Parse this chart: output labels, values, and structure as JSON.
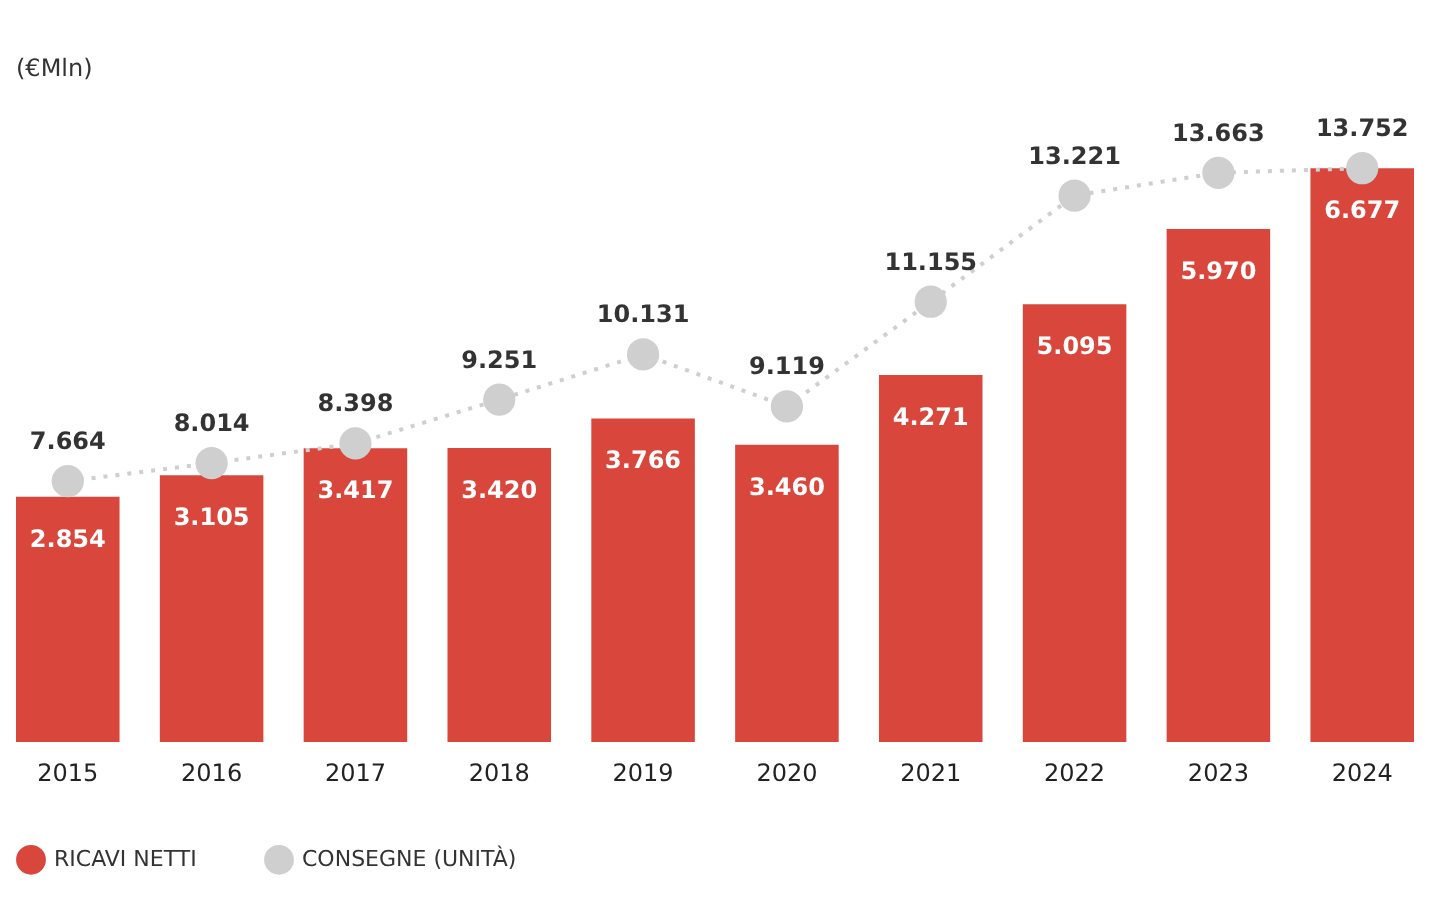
{
  "chart_data": {
    "type": "bar",
    "annotations": [
      "(€Mln)"
    ],
    "categories": [
      "2015",
      "2016",
      "2017",
      "2018",
      "2019",
      "2020",
      "2021",
      "2022",
      "2023",
      "2024"
    ],
    "series": [
      {
        "name": "RICAVI NETTI",
        "color": "#d9473c",
        "values": [
          2854,
          3105,
          3417,
          3420,
          3766,
          3460,
          4271,
          5095,
          5970,
          6677
        ],
        "value_labels": [
          "2.854",
          "3.105",
          "3.417",
          "3.420",
          "3.766",
          "3.460",
          "4.271",
          "5.095",
          "5.970",
          "6.677"
        ]
      },
      {
        "name": "CONSEGNE (UNITÀ)",
        "type": "line",
        "axis": "y2",
        "color": "#cfcfcf",
        "marker": "circle",
        "line_style": "dotted",
        "values": [
          7664,
          8014,
          8398,
          9251,
          10131,
          9119,
          11155,
          13221,
          13663,
          13752
        ],
        "value_labels": [
          "7.664",
          "8.014",
          "8.398",
          "9.251",
          "10.131",
          "9.119",
          "11.155",
          "13.221",
          "13.663",
          "13.752"
        ]
      }
    ],
    "tick_labels": "x",
    "grid": false,
    "legend": "bottom left"
  }
}
